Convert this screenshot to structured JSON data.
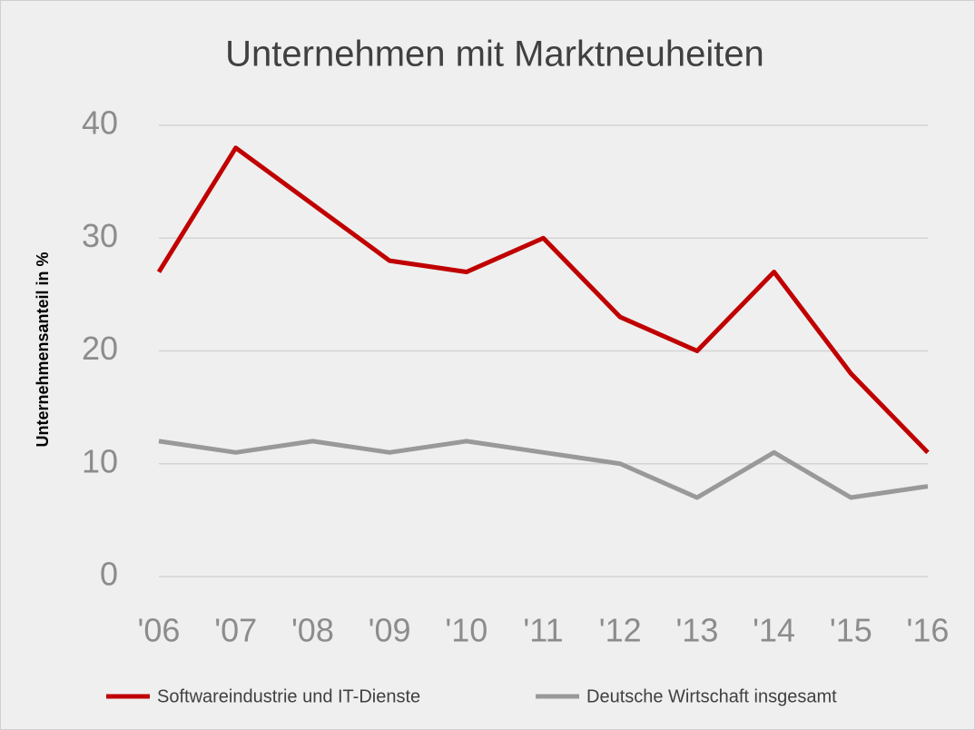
{
  "chart_data": {
    "type": "line",
    "title": "Unternehmen mit Marktneuheiten",
    "y_label": "Unternehmensanteil in %",
    "categories": [
      "'06",
      "'07",
      "'08",
      "'09",
      "'10",
      "'11",
      "'12",
      "'13",
      "'14",
      "'15",
      "'16"
    ],
    "series": [
      {
        "name": "Softwareindustrie und IT-Dienste",
        "color": "#c00000",
        "values": [
          27,
          38,
          33,
          28,
          27,
          30,
          23,
          20,
          27,
          18,
          11
        ]
      },
      {
        "name": "Deutsche Wirtschaft insgesamt",
        "color": "#999999",
        "values": [
          12,
          11,
          12,
          11,
          12,
          11,
          10,
          7,
          11,
          7,
          8
        ]
      }
    ],
    "ylim": [
      0,
      40
    ],
    "yticks": [
      0,
      10,
      20,
      30,
      40
    ],
    "grid": true
  }
}
